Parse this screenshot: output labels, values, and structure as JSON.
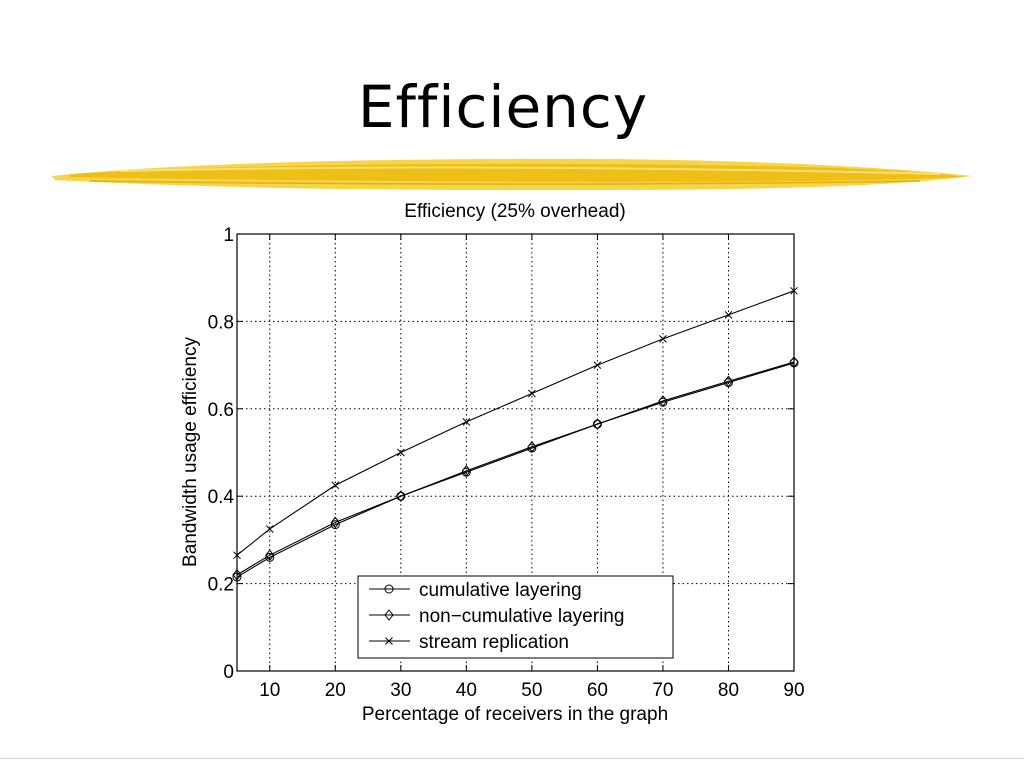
{
  "slide": {
    "title": "Efficiency",
    "accent_color": "#f5c518"
  },
  "chart_data": {
    "type": "line",
    "title": "Efficiency (25% overhead)",
    "xlabel": "Percentage of receivers in the graph",
    "ylabel": "Bandwidth usage efficiency",
    "xlim": [
      5,
      90
    ],
    "ylim": [
      0,
      1
    ],
    "xticks": [
      10,
      20,
      30,
      40,
      50,
      60,
      70,
      80,
      90
    ],
    "yticks": [
      0,
      0.2,
      0.4,
      0.6,
      0.8,
      1
    ],
    "ytick_labels": [
      "0",
      "0.2",
      "0.4",
      "0.6",
      "0.8",
      "1"
    ],
    "grid": true,
    "legend_position": "bottom-center",
    "x": [
      5,
      10,
      20,
      30,
      40,
      50,
      60,
      70,
      80,
      90
    ],
    "series": [
      {
        "name": "cumulative layering",
        "marker": "circle",
        "values": [
          0.215,
          0.26,
          0.335,
          0.4,
          0.455,
          0.51,
          0.565,
          0.615,
          0.66,
          0.705
        ]
      },
      {
        "name": "non−cumulative layering",
        "marker": "diamond",
        "values": [
          0.22,
          0.265,
          0.34,
          0.4,
          0.458,
          0.513,
          0.565,
          0.618,
          0.663,
          0.707
        ]
      },
      {
        "name": "stream replication",
        "marker": "x",
        "values": [
          0.265,
          0.325,
          0.425,
          0.5,
          0.57,
          0.635,
          0.7,
          0.76,
          0.815,
          0.87
        ]
      }
    ]
  }
}
